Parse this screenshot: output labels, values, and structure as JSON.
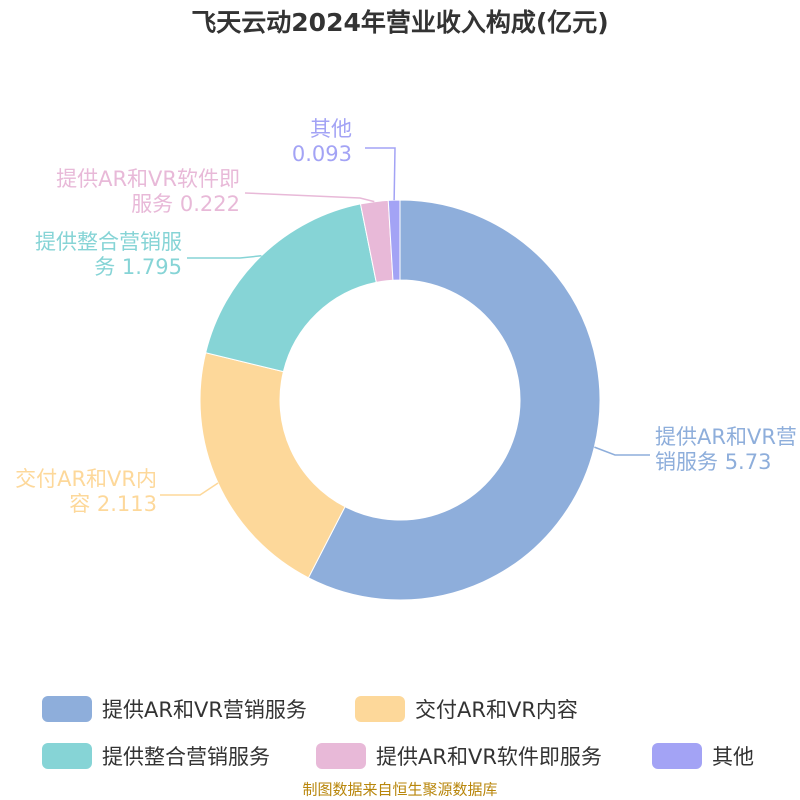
{
  "chart_data": {
    "type": "donut",
    "title": "飞天云动2024年营业收入构成(亿元)",
    "categories": [
      "提供AR和VR营销服务",
      "交付AR和VR内容",
      "提供整合营销服务",
      "提供AR和VR软件即服务",
      "其他"
    ],
    "values": [
      5.73,
      2.113,
      1.795,
      0.222,
      0.093
    ],
    "colors": [
      "#8eaedb",
      "#fdd89a",
      "#86d4d6",
      "#e8b9d8",
      "#a3a3f5"
    ],
    "source": "制图数据来自恒生聚源数据库"
  }
}
